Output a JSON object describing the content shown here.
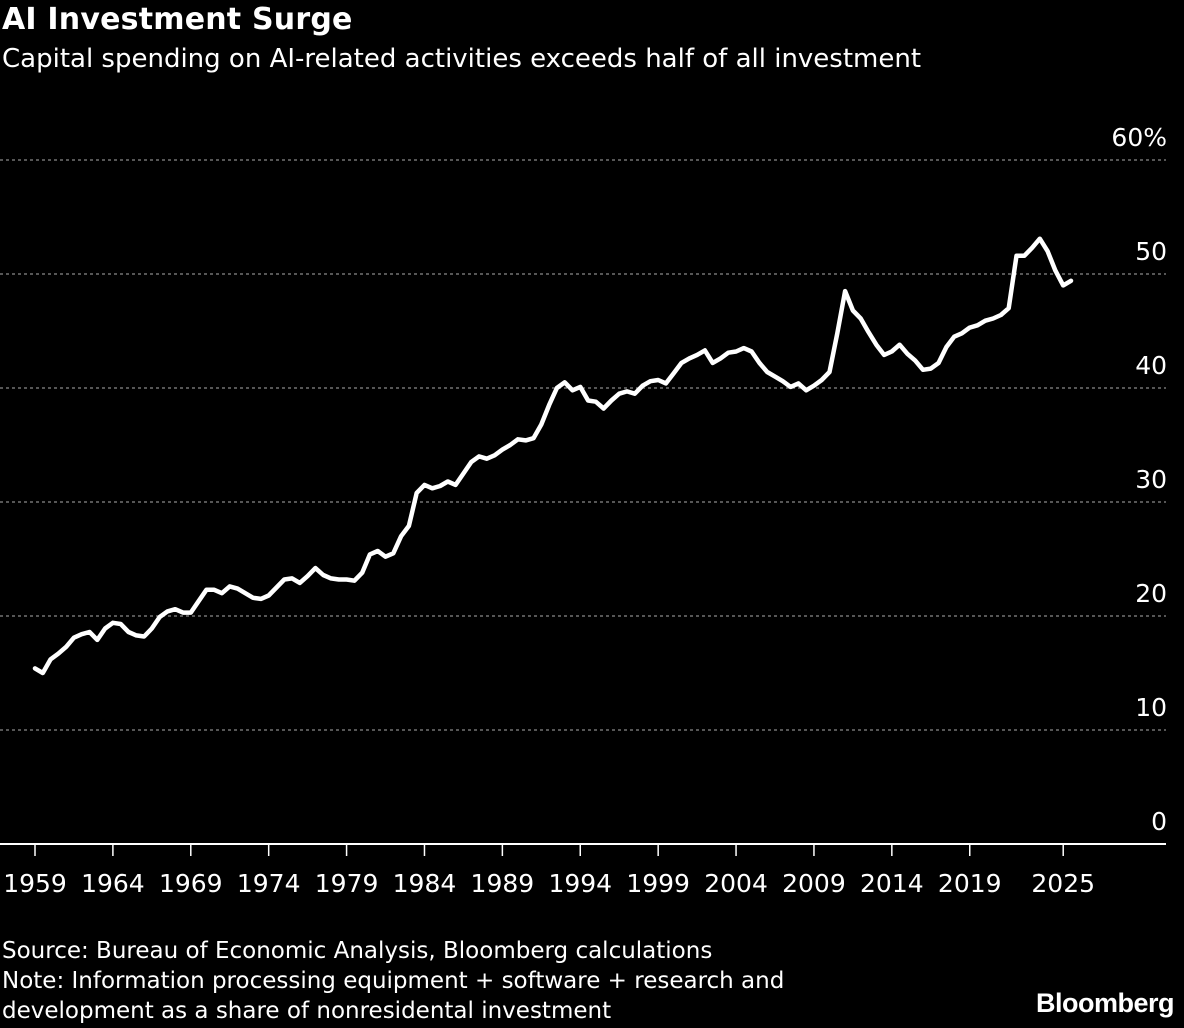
{
  "header": {
    "title": "AI Investment Surge",
    "subtitle": "Capital spending on AI-related activities exceeds half of all investment"
  },
  "footer": {
    "source": "Source: Bureau of Economic Analysis, Bloomberg calculations",
    "note_line1": "Note: Information processing equipment + software + research and",
    "note_line2": "development as a share of nonresidental investment",
    "brand": "Bloomberg"
  },
  "colors": {
    "background": "#000000",
    "line": "#ffffff",
    "grid": "#8a8a8a",
    "text": "#ffffff"
  },
  "chart_data": {
    "type": "line",
    "title": "AI Investment Surge",
    "subtitle": "Capital spending on AI-related activities exceeds half of all investment",
    "xlabel": "",
    "ylabel": "",
    "xlim": [
      1959,
      2025.5
    ],
    "ylim": [
      0,
      60
    ],
    "y_ticks": [
      0,
      10,
      20,
      30,
      40,
      50,
      60
    ],
    "y_tick_labels": [
      "0",
      "10",
      "20",
      "30",
      "40",
      "50",
      "60%"
    ],
    "x_ticks": [
      1959,
      1964,
      1969,
      1974,
      1979,
      1984,
      1989,
      1994,
      1999,
      2004,
      2009,
      2014,
      2019,
      2025
    ],
    "x_tick_labels": [
      "1959",
      "1964",
      "1969",
      "1974",
      "1979",
      "1984",
      "1989",
      "1994",
      "1999",
      "2004",
      "2009",
      "2014",
      "2019",
      "2025"
    ],
    "grid": true,
    "legend": "none",
    "series": [
      {
        "values": [
          [
            1959.0,
            15.4
          ],
          [
            1959.5,
            15.0
          ],
          [
            1960.0,
            16.2
          ],
          [
            1960.5,
            16.7
          ],
          [
            1961.0,
            17.3
          ],
          [
            1961.5,
            18.1
          ],
          [
            1962.0,
            18.4
          ],
          [
            1962.5,
            18.6
          ],
          [
            1963.0,
            17.9
          ],
          [
            1963.5,
            18.9
          ],
          [
            1964.0,
            19.4
          ],
          [
            1964.5,
            19.3
          ],
          [
            1965.0,
            18.6
          ],
          [
            1965.5,
            18.3
          ],
          [
            1966.0,
            18.2
          ],
          [
            1966.5,
            18.9
          ],
          [
            1967.0,
            19.9
          ],
          [
            1967.5,
            20.4
          ],
          [
            1968.0,
            20.6
          ],
          [
            1968.5,
            20.3
          ],
          [
            1969.0,
            20.3
          ],
          [
            1969.5,
            21.3
          ],
          [
            1970.0,
            22.3
          ],
          [
            1970.5,
            22.3
          ],
          [
            1971.0,
            22.0
          ],
          [
            1971.5,
            22.6
          ],
          [
            1972.0,
            22.4
          ],
          [
            1972.5,
            22.0
          ],
          [
            1973.0,
            21.6
          ],
          [
            1973.5,
            21.5
          ],
          [
            1974.0,
            21.8
          ],
          [
            1974.5,
            22.5
          ],
          [
            1975.0,
            23.2
          ],
          [
            1975.5,
            23.3
          ],
          [
            1976.0,
            22.9
          ],
          [
            1976.5,
            23.5
          ],
          [
            1977.0,
            24.2
          ],
          [
            1977.5,
            23.6
          ],
          [
            1978.0,
            23.3
          ],
          [
            1978.5,
            23.2
          ],
          [
            1979.0,
            23.2
          ],
          [
            1979.5,
            23.1
          ],
          [
            1980.0,
            23.8
          ],
          [
            1980.5,
            25.4
          ],
          [
            1981.0,
            25.7
          ],
          [
            1981.5,
            25.2
          ],
          [
            1982.0,
            25.5
          ],
          [
            1982.5,
            27.0
          ],
          [
            1983.0,
            27.9
          ],
          [
            1983.5,
            30.8
          ],
          [
            1984.0,
            31.5
          ],
          [
            1984.5,
            31.2
          ],
          [
            1985.0,
            31.4
          ],
          [
            1985.5,
            31.8
          ],
          [
            1986.0,
            31.5
          ],
          [
            1986.5,
            32.5
          ],
          [
            1987.0,
            33.5
          ],
          [
            1987.5,
            34.0
          ],
          [
            1988.0,
            33.8
          ],
          [
            1988.5,
            34.1
          ],
          [
            1989.0,
            34.6
          ],
          [
            1989.5,
            35.0
          ],
          [
            1990.0,
            35.5
          ],
          [
            1990.5,
            35.4
          ],
          [
            1991.0,
            35.6
          ],
          [
            1991.5,
            36.8
          ],
          [
            1992.0,
            38.5
          ],
          [
            1992.5,
            40.0
          ],
          [
            1993.0,
            40.5
          ],
          [
            1993.5,
            39.8
          ],
          [
            1994.0,
            40.1
          ],
          [
            1994.5,
            38.9
          ],
          [
            1995.0,
            38.8
          ],
          [
            1995.5,
            38.2
          ],
          [
            1996.0,
            38.9
          ],
          [
            1996.5,
            39.5
          ],
          [
            1997.0,
            39.7
          ],
          [
            1997.5,
            39.5
          ],
          [
            1998.0,
            40.2
          ],
          [
            1998.5,
            40.6
          ],
          [
            1999.0,
            40.7
          ],
          [
            1999.5,
            40.4
          ],
          [
            2000.0,
            41.3
          ],
          [
            2000.5,
            42.2
          ],
          [
            2001.0,
            42.6
          ],
          [
            2001.5,
            42.9
          ],
          [
            2002.0,
            43.3
          ],
          [
            2002.5,
            42.2
          ],
          [
            2003.0,
            42.6
          ],
          [
            2003.5,
            43.1
          ],
          [
            2004.0,
            43.2
          ],
          [
            2004.5,
            43.5
          ],
          [
            2005.0,
            43.2
          ],
          [
            2005.5,
            42.2
          ],
          [
            2006.0,
            41.4
          ],
          [
            2006.5,
            41.0
          ],
          [
            2007.0,
            40.6
          ],
          [
            2007.5,
            40.1
          ],
          [
            2008.0,
            40.4
          ],
          [
            2008.5,
            39.8
          ],
          [
            2009.0,
            40.2
          ],
          [
            2009.5,
            40.7
          ],
          [
            2010.0,
            41.4
          ],
          [
            2010.5,
            44.8
          ],
          [
            2011.0,
            48.5
          ],
          [
            2011.5,
            46.8
          ],
          [
            2012.0,
            46.1
          ],
          [
            2012.5,
            44.9
          ],
          [
            2013.0,
            43.8
          ],
          [
            2013.5,
            42.9
          ],
          [
            2014.0,
            43.2
          ],
          [
            2014.5,
            43.8
          ],
          [
            2015.0,
            43.0
          ],
          [
            2015.5,
            42.4
          ],
          [
            2016.0,
            41.6
          ],
          [
            2016.5,
            41.7
          ],
          [
            2017.0,
            42.2
          ],
          [
            2017.5,
            43.6
          ],
          [
            2018.0,
            44.5
          ],
          [
            2018.5,
            44.8
          ],
          [
            2019.0,
            45.3
          ],
          [
            2019.5,
            45.5
          ],
          [
            2020.0,
            45.9
          ],
          [
            2020.5,
            46.1
          ],
          [
            2021.0,
            46.4
          ],
          [
            2021.5,
            47.0
          ],
          [
            2022.0,
            51.6
          ],
          [
            2022.5,
            51.6
          ],
          [
            2023.0,
            52.3
          ],
          [
            2023.5,
            53.1
          ],
          [
            2024.0,
            52.0
          ],
          [
            2024.5,
            50.3
          ],
          [
            2025.0,
            49.0
          ],
          [
            2025.5,
            49.4
          ]
        ]
      }
    ]
  }
}
